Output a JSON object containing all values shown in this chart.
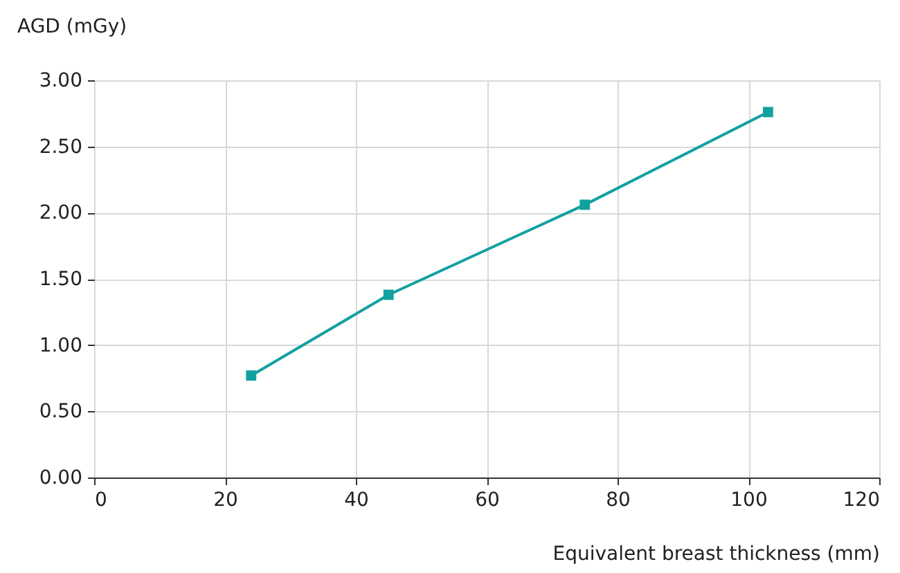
{
  "chart_data": {
    "type": "line",
    "xlabel": "Equivalent breast thickness (mm)",
    "ylabel": "AGD (mGy)",
    "x": [
      24,
      45,
      75,
      103
    ],
    "series": [
      {
        "color": "#12a0a0",
        "values": [
          0.77,
          1.38,
          2.06,
          2.76
        ]
      }
    ],
    "xlim": [
      0,
      120
    ],
    "xticks": [
      0,
      20,
      40,
      60,
      80,
      100,
      120
    ],
    "ylim": [
      0,
      3
    ],
    "yticks": [
      {
        "value": 0,
        "label": "0.00"
      },
      {
        "value": 0.5,
        "label": "0.50"
      },
      {
        "value": 1,
        "label": "1.00"
      },
      {
        "value": 1.5,
        "label": "1.50"
      },
      {
        "value": 2,
        "label": "2.00"
      },
      {
        "value": 2.5,
        "label": "2.50"
      },
      {
        "value": 3,
        "label": "3.00"
      }
    ],
    "grid": true,
    "marker": "square",
    "line_style": "solid"
  }
}
